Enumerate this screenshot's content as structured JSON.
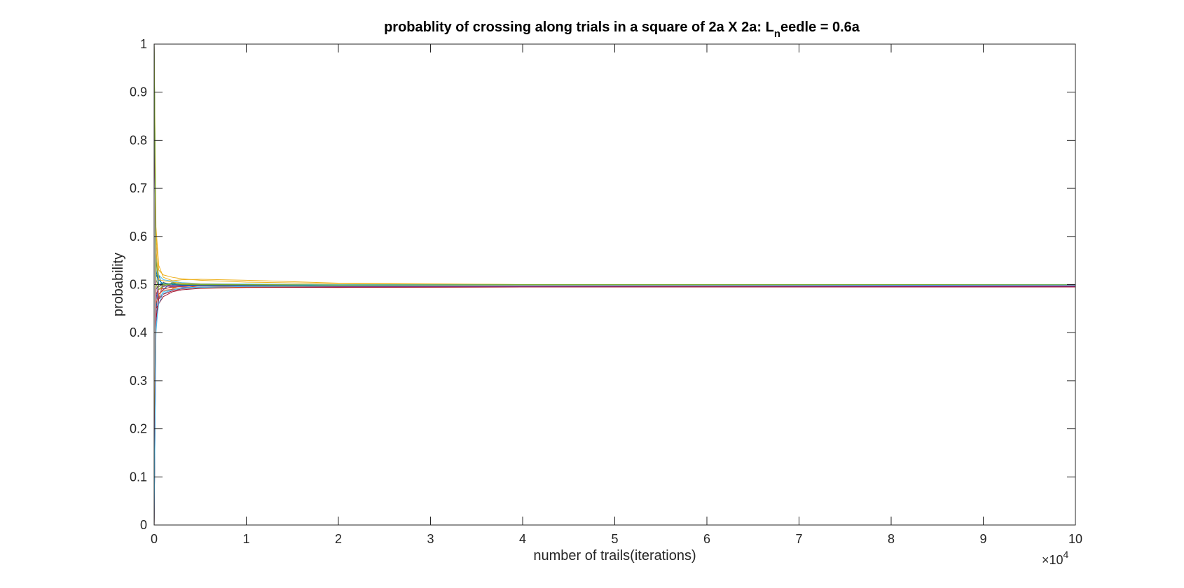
{
  "chart_data": {
    "type": "line",
    "title": {
      "main": "probablity of crossing along trials in a square of 2a X 2a: L",
      "subscript": "n",
      "rest": "eedle = 0.6a"
    },
    "xlabel": "number of trails(iterations)",
    "ylabel": "probability",
    "x_exponent_label": {
      "base": "×10",
      "exponent": "4"
    },
    "xlim": [
      0,
      100000
    ],
    "ylim": [
      0,
      1
    ],
    "x_ticks": [
      0,
      10000,
      20000,
      30000,
      40000,
      50000,
      60000,
      70000,
      80000,
      90000,
      100000
    ],
    "x_tick_labels": [
      "0",
      "1",
      "2",
      "3",
      "4",
      "5",
      "6",
      "7",
      "8",
      "9",
      "10"
    ],
    "y_ticks": [
      0,
      0.1,
      0.2,
      0.3,
      0.4,
      0.5,
      0.6,
      0.7,
      0.8,
      0.9,
      1
    ],
    "y_tick_labels": [
      "0",
      "0.1",
      "0.2",
      "0.3",
      "0.4",
      "0.5",
      "0.6",
      "0.7",
      "0.8",
      "0.9",
      "1"
    ],
    "grid": false,
    "legend": "none",
    "series_count": 20,
    "series": [
      {
        "color": "#0072BD",
        "x": [
          1,
          200,
          500,
          1000,
          2000,
          3000,
          5000,
          10000,
          20000,
          40000,
          70000,
          100000
        ],
        "values": [
          1.0,
          0.44,
          0.52,
          0.49,
          0.505,
          0.497,
          0.499,
          0.497,
          0.496,
          0.497,
          0.497,
          0.497
        ]
      },
      {
        "color": "#D95319",
        "x": [
          1,
          200,
          500,
          1000,
          2000,
          3000,
          5000,
          10000,
          20000,
          40000,
          70000,
          100000
        ],
        "values": [
          0.0,
          0.58,
          0.47,
          0.505,
          0.492,
          0.498,
          0.494,
          0.495,
          0.494,
          0.495,
          0.495,
          0.495
        ]
      },
      {
        "color": "#EDB120",
        "x": [
          1,
          200,
          500,
          1000,
          2000,
          3000,
          5000,
          10000,
          20000,
          40000,
          70000,
          100000
        ],
        "values": [
          1.0,
          0.62,
          0.54,
          0.515,
          0.508,
          0.51,
          0.511,
          0.509,
          0.503,
          0.5,
          0.498,
          0.497
        ]
      },
      {
        "color": "#7E2F8E",
        "x": [
          1,
          200,
          500,
          1000,
          2000,
          3000,
          5000,
          10000,
          20000,
          40000,
          70000,
          100000
        ],
        "values": [
          0.0,
          0.42,
          0.48,
          0.49,
          0.496,
          0.495,
          0.493,
          0.494,
          0.495,
          0.496,
          0.496,
          0.496
        ]
      },
      {
        "color": "#77AC30",
        "x": [
          1,
          200,
          500,
          1000,
          2000,
          3000,
          5000,
          10000,
          20000,
          40000,
          70000,
          100000
        ],
        "values": [
          1.0,
          0.55,
          0.5,
          0.502,
          0.498,
          0.5,
          0.499,
          0.498,
          0.497,
          0.498,
          0.498,
          0.499
        ]
      },
      {
        "color": "#4DBEEE",
        "x": [
          1,
          200,
          500,
          1000,
          2000,
          3000,
          5000,
          10000,
          20000,
          40000,
          70000,
          100000
        ],
        "values": [
          0.0,
          0.4,
          0.47,
          0.485,
          0.49,
          0.493,
          0.495,
          0.496,
          0.497,
          0.497,
          0.498,
          0.498
        ]
      },
      {
        "color": "#A2142F",
        "x": [
          1,
          200,
          500,
          1000,
          2000,
          3000,
          5000,
          10000,
          20000,
          40000,
          70000,
          100000
        ],
        "values": [
          1.0,
          0.45,
          0.46,
          0.475,
          0.485,
          0.489,
          0.492,
          0.494,
          0.494,
          0.495,
          0.495,
          0.495
        ]
      },
      {
        "color": "#0072BD",
        "x": [
          1,
          200,
          500,
          1000,
          2000,
          3000,
          5000,
          10000,
          20000,
          40000,
          70000,
          100000
        ],
        "values": [
          0.0,
          0.52,
          0.51,
          0.5,
          0.503,
          0.501,
          0.5,
          0.499,
          0.498,
          0.497,
          0.497,
          0.497
        ]
      },
      {
        "color": "#D95319",
        "x": [
          1,
          200,
          500,
          1000,
          2000,
          3000,
          5000,
          10000,
          20000,
          40000,
          70000,
          100000
        ],
        "values": [
          1.0,
          0.48,
          0.49,
          0.492,
          0.494,
          0.496,
          0.497,
          0.496,
          0.496,
          0.496,
          0.497,
          0.497
        ]
      },
      {
        "color": "#EDB120",
        "x": [
          1,
          200,
          500,
          1000,
          2000,
          3000,
          5000,
          10000,
          20000,
          40000,
          70000,
          100000
        ],
        "values": [
          0.0,
          0.6,
          0.53,
          0.52,
          0.515,
          0.512,
          0.509,
          0.505,
          0.502,
          0.5,
          0.499,
          0.499
        ]
      },
      {
        "color": "#7E2F8E",
        "x": [
          1,
          200,
          500,
          1000,
          2000,
          3000,
          5000,
          10000,
          20000,
          40000,
          70000,
          100000
        ],
        "values": [
          1.0,
          0.47,
          0.5,
          0.496,
          0.499,
          0.498,
          0.498,
          0.497,
          0.497,
          0.497,
          0.497,
          0.497
        ]
      },
      {
        "color": "#77AC30",
        "x": [
          1,
          200,
          500,
          1000,
          2000,
          3000,
          5000,
          10000,
          20000,
          40000,
          70000,
          100000
        ],
        "values": [
          0.0,
          0.5,
          0.49,
          0.498,
          0.501,
          0.5,
          0.5,
          0.499,
          0.499,
          0.499,
          0.5,
          0.5
        ]
      },
      {
        "color": "#4DBEEE",
        "x": [
          1,
          200,
          500,
          1000,
          2000,
          3000,
          5000,
          10000,
          20000,
          40000,
          70000,
          100000
        ],
        "values": [
          1.0,
          0.56,
          0.52,
          0.51,
          0.507,
          0.504,
          0.502,
          0.501,
          0.5,
          0.5,
          0.5,
          0.499
        ]
      },
      {
        "color": "#A2142F",
        "x": [
          1,
          200,
          500,
          1000,
          2000,
          3000,
          5000,
          10000,
          20000,
          40000,
          70000,
          100000
        ],
        "values": [
          0.0,
          0.43,
          0.47,
          0.48,
          0.487,
          0.491,
          0.494,
          0.495,
          0.495,
          0.495,
          0.495,
          0.495
        ]
      },
      {
        "color": "#0072BD",
        "x": [
          1,
          200,
          500,
          1000,
          2000,
          3000,
          5000,
          10000,
          20000,
          40000,
          70000,
          100000
        ],
        "values": [
          1.0,
          0.53,
          0.5,
          0.504,
          0.5,
          0.499,
          0.498,
          0.498,
          0.498,
          0.498,
          0.498,
          0.498
        ]
      },
      {
        "color": "#D95319",
        "x": [
          1,
          200,
          500,
          1000,
          2000,
          3000,
          5000,
          10000,
          20000,
          40000,
          70000,
          100000
        ],
        "values": [
          0.0,
          0.46,
          0.48,
          0.488,
          0.49,
          0.492,
          0.493,
          0.495,
          0.496,
          0.497,
          0.497,
          0.497
        ]
      },
      {
        "color": "#EDB120",
        "x": [
          1,
          200,
          500,
          1000,
          2000,
          3000,
          5000,
          10000,
          20000,
          40000,
          70000,
          100000
        ],
        "values": [
          1.0,
          0.57,
          0.51,
          0.508,
          0.505,
          0.503,
          0.501,
          0.5,
          0.499,
          0.499,
          0.498,
          0.498
        ]
      },
      {
        "color": "#7E2F8E",
        "x": [
          1,
          200,
          500,
          1000,
          2000,
          3000,
          5000,
          10000,
          20000,
          40000,
          70000,
          100000
        ],
        "values": [
          0.0,
          0.49,
          0.5,
          0.497,
          0.496,
          0.497,
          0.497,
          0.497,
          0.496,
          0.496,
          0.497,
          0.497
        ]
      },
      {
        "color": "#77AC30",
        "x": [
          1,
          200,
          500,
          1000,
          2000,
          3000,
          5000,
          10000,
          20000,
          40000,
          70000,
          100000
        ],
        "values": [
          1.0,
          0.51,
          0.495,
          0.5,
          0.502,
          0.501,
          0.5,
          0.5,
          0.499,
          0.5,
          0.5,
          0.5
        ]
      },
      {
        "color": "#4DBEEE",
        "x": [
          1,
          200,
          500,
          1000,
          2000,
          3000,
          5000,
          10000,
          20000,
          40000,
          70000,
          100000
        ],
        "values": [
          0.0,
          0.41,
          0.46,
          0.482,
          0.489,
          0.492,
          0.494,
          0.496,
          0.497,
          0.498,
          0.498,
          0.499
        ]
      }
    ]
  }
}
